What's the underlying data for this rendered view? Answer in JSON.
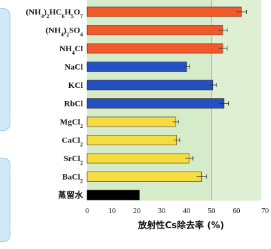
{
  "colors": {
    "ammonium": "#f2592a",
    "alkali": "#2450c4",
    "alkaline_earth": "#f5dc40",
    "water": "#000000",
    "plot_bg": "#d6ebc9",
    "plot_bg_light": "#eef6e6"
  },
  "chart_data": {
    "type": "bar",
    "orientation": "horizontal",
    "xlabel": "放射性Cs除去率 (%)",
    "xlim": [
      0,
      70
    ],
    "xticks": [
      "0",
      "10",
      "20",
      "30",
      "40",
      "50",
      "60",
      "70"
    ],
    "grid": "vertical at 50",
    "categories": [
      {
        "key": "amm_citrate",
        "label": "(NH4)2HC6H5O7",
        "value": 62,
        "err": 2,
        "group": "ammonium"
      },
      {
        "key": "amm_sulfate",
        "label": "(NH4)2SO4",
        "value": 54.5,
        "err": 1.8,
        "group": "ammonium"
      },
      {
        "key": "amm_chloride",
        "label": "NH4Cl",
        "value": 54.5,
        "err": 1.8,
        "group": "ammonium"
      },
      {
        "key": "nacl",
        "label": "NaCl",
        "value": 40,
        "err": 1.2,
        "group": "alkali"
      },
      {
        "key": "kcl",
        "label": "KCl",
        "value": 50.5,
        "err": 1.5,
        "group": "alkali"
      },
      {
        "key": "rbcl",
        "label": "RbCl",
        "value": 55,
        "err": 1.8,
        "group": "alkali"
      },
      {
        "key": "mgcl2",
        "label": "MgCl2",
        "value": 35.5,
        "err": 1.2,
        "group": "alkaline_earth"
      },
      {
        "key": "cacl2",
        "label": "CaCl2",
        "value": 36,
        "err": 1.2,
        "group": "alkaline_earth"
      },
      {
        "key": "srcl2",
        "label": "SrCl2",
        "value": 41,
        "err": 1.5,
        "group": "alkaline_earth"
      },
      {
        "key": "bacl2",
        "label": "BaCl2",
        "value": 46,
        "err": 2,
        "group": "alkaline_earth"
      },
      {
        "key": "water",
        "label": "蒸留水",
        "value": 21,
        "err": 0,
        "group": "water"
      }
    ]
  }
}
